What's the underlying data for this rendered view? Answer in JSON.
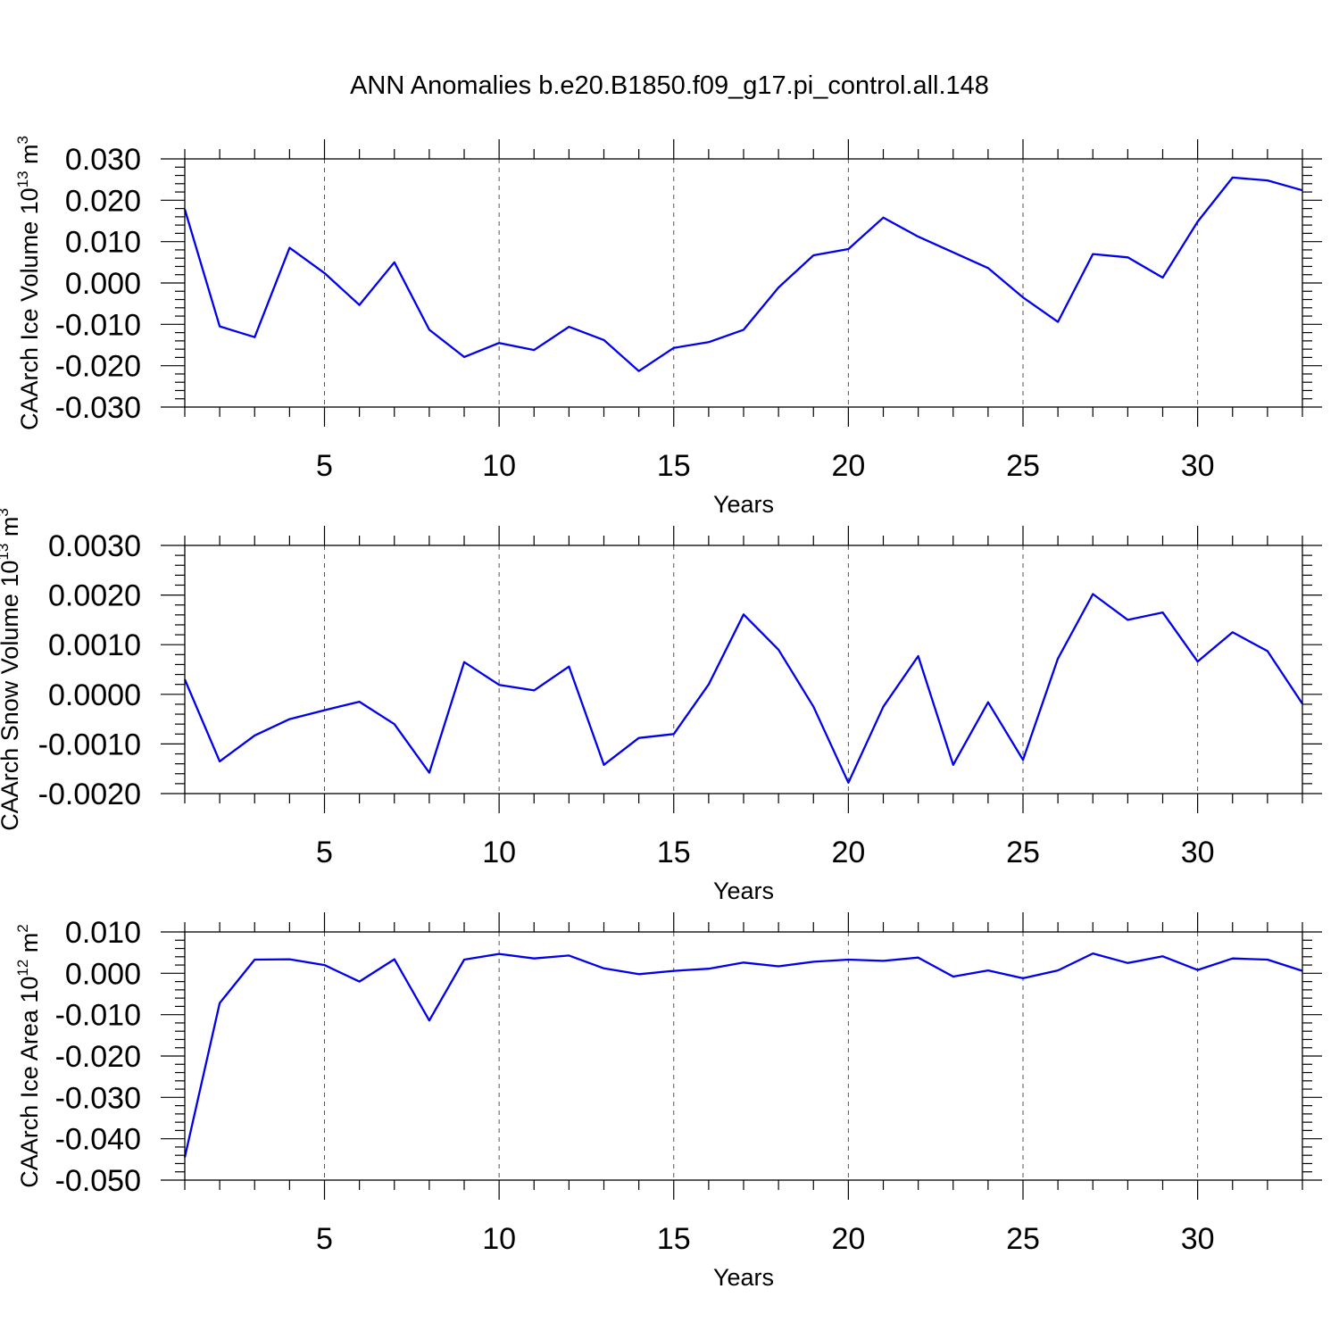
{
  "chart_data": [
    {
      "type": "line",
      "title": "ANN Anomalies b.e20.B1850.f09_g17.pi_control.all.148",
      "xlabel": "Years",
      "ylabel": "CAArch Ice Volume 10",
      "ylabel_exp": "13",
      "ylabel_unit": " m",
      "ylabel_unit_exp": "3",
      "xlim": [
        1,
        33
      ],
      "ylim": [
        -0.03,
        0.03
      ],
      "xticks": [
        5,
        10,
        15,
        20,
        25,
        30
      ],
      "xtick_labels": [
        "5",
        "10",
        "15",
        "20",
        "25",
        "30"
      ],
      "yticks": [
        -0.03,
        -0.02,
        -0.01,
        0.0,
        0.01,
        0.02,
        0.03
      ],
      "ytick_labels": [
        "-0.030",
        "-0.020",
        "-0.010",
        "0.000",
        "0.010",
        "0.020",
        "0.030"
      ],
      "x": [
        1,
        2,
        3,
        4,
        5,
        6,
        7,
        8,
        9,
        10,
        11,
        12,
        13,
        14,
        15,
        16,
        17,
        18,
        19,
        20,
        21,
        22,
        23,
        24,
        25,
        26,
        27,
        28,
        29,
        30,
        31,
        32,
        33
      ],
      "series": [
        {
          "name": "CAArch Ice Volume",
          "color": "#0000ee",
          "values": [
            0.0178,
            -0.0105,
            -0.0131,
            0.0085,
            0.0024,
            -0.0053,
            0.005,
            -0.0113,
            -0.0179,
            -0.0145,
            -0.0162,
            -0.0106,
            -0.0138,
            -0.0213,
            -0.0157,
            -0.0143,
            -0.0113,
            -0.0011,
            0.0067,
            0.0082,
            0.0158,
            0.0112,
            0.0074,
            0.0036,
            -0.0035,
            -0.0094,
            0.007,
            0.0062,
            0.0013,
            0.0148,
            0.0255,
            0.0248,
            0.0224
          ]
        }
      ]
    },
    {
      "type": "line",
      "xlabel": "Years",
      "ylabel": "CAArch Snow Volume 10",
      "ylabel_exp": "13",
      "ylabel_unit": " m",
      "ylabel_unit_exp": "3",
      "xlim": [
        1,
        33
      ],
      "ylim": [
        -0.002,
        0.003
      ],
      "xticks": [
        5,
        10,
        15,
        20,
        25,
        30
      ],
      "xtick_labels": [
        "5",
        "10",
        "15",
        "20",
        "25",
        "30"
      ],
      "yticks": [
        -0.002,
        -0.001,
        0.0,
        0.001,
        0.002,
        0.003
      ],
      "ytick_labels": [
        "-0.0020",
        "-0.0010",
        "0.0000",
        "0.0010",
        "0.0020",
        "0.0030"
      ],
      "x": [
        1,
        2,
        3,
        4,
        5,
        6,
        7,
        8,
        9,
        10,
        11,
        12,
        13,
        14,
        15,
        16,
        17,
        18,
        19,
        20,
        21,
        22,
        23,
        24,
        25,
        26,
        27,
        28,
        29,
        30,
        31,
        32,
        33
      ],
      "series": [
        {
          "name": "CAArch Snow Volume",
          "color": "#0000ee",
          "values": [
            0.0003,
            -0.00135,
            -0.00083,
            -0.0005,
            -0.00032,
            -0.00015,
            -0.0006,
            -0.00158,
            0.00065,
            0.00019,
            8e-05,
            0.00056,
            -0.00142,
            -0.00088,
            -0.0008,
            0.0002,
            0.00161,
            0.0009,
            -0.00025,
            -0.00178,
            -0.00025,
            0.00077,
            -0.00142,
            -0.00016,
            -0.00132,
            0.00072,
            0.00202,
            0.0015,
            0.00165,
            0.00066,
            0.00125,
            0.00087,
            -0.00019
          ]
        }
      ]
    },
    {
      "type": "line",
      "xlabel": "Years",
      "ylabel": "CAArch Ice Area 10",
      "ylabel_exp": "12",
      "ylabel_unit": " m",
      "ylabel_unit_exp": "2",
      "xlim": [
        1,
        33
      ],
      "ylim": [
        -0.05,
        0.01
      ],
      "xticks": [
        5,
        10,
        15,
        20,
        25,
        30
      ],
      "xtick_labels": [
        "5",
        "10",
        "15",
        "20",
        "25",
        "30"
      ],
      "yticks": [
        -0.05,
        -0.04,
        -0.03,
        -0.02,
        -0.01,
        0.0,
        0.01
      ],
      "ytick_labels": [
        "-0.050",
        "-0.040",
        "-0.030",
        "-0.020",
        "-0.010",
        "0.000",
        "0.010"
      ],
      "x": [
        1,
        2,
        3,
        4,
        5,
        6,
        7,
        8,
        9,
        10,
        11,
        12,
        13,
        14,
        15,
        16,
        17,
        18,
        19,
        20,
        21,
        22,
        23,
        24,
        25,
        26,
        27,
        28,
        29,
        30,
        31,
        32,
        33
      ],
      "series": [
        {
          "name": "CAArch Ice Area",
          "color": "#0000ee",
          "values": [
            -0.0445,
            -0.0072,
            0.0033,
            0.0034,
            0.002,
            -0.002,
            0.0034,
            -0.0114,
            0.0033,
            0.0047,
            0.0036,
            0.0043,
            0.0012,
            -0.0002,
            0.0006,
            0.0011,
            0.0026,
            0.0017,
            0.0028,
            0.0033,
            0.003,
            0.0038,
            -0.0008,
            0.0007,
            -0.0012,
            0.0007,
            0.0048,
            0.0025,
            0.0041,
            0.0008,
            0.0036,
            0.0033,
            0.0006
          ]
        }
      ]
    }
  ]
}
